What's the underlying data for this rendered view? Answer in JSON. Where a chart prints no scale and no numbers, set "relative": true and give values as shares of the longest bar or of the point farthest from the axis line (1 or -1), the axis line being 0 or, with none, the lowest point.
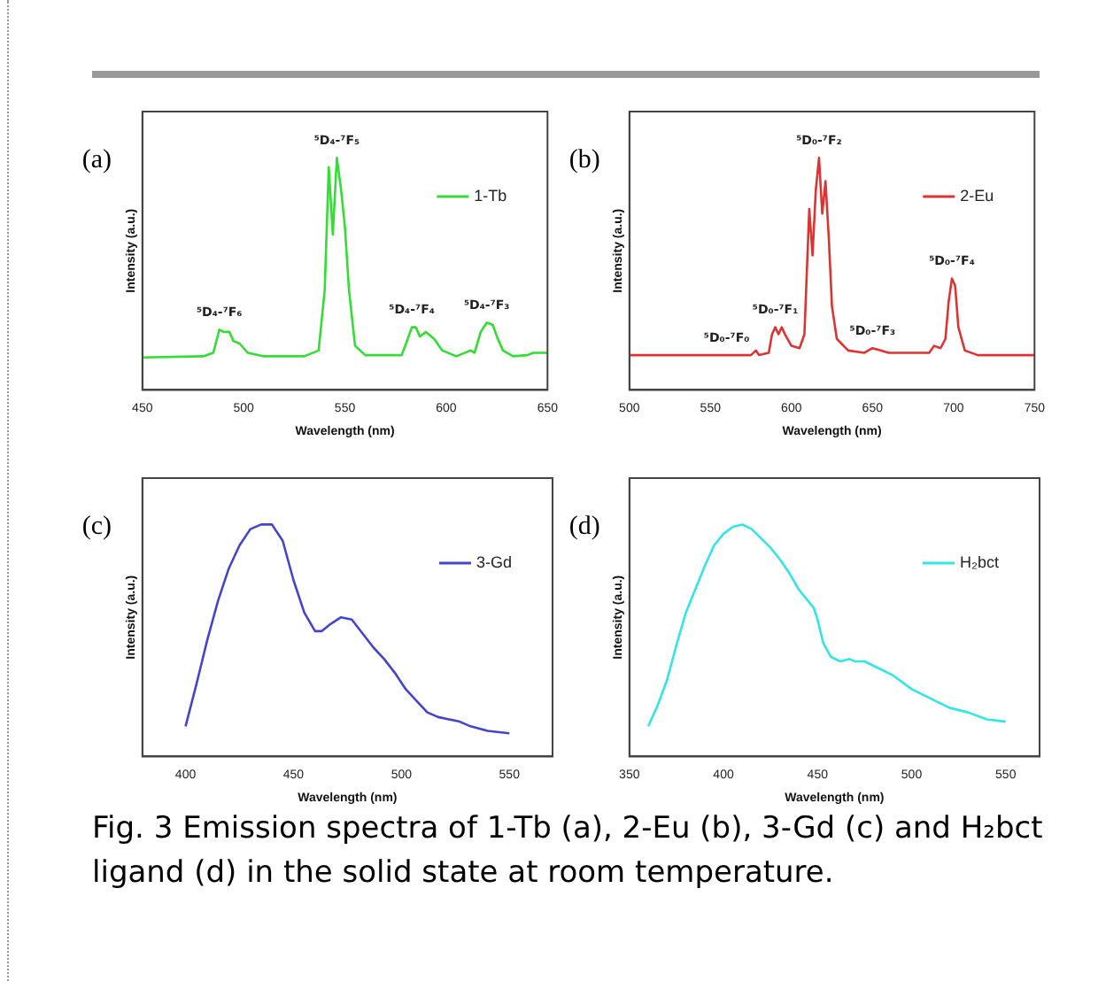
{
  "chart_data": [
    {
      "type": "line",
      "title": "(a)",
      "xlabel": "Wavelength (nm)",
      "ylabel": "Intensity (a.u.)",
      "relative": true,
      "xlim": [
        450,
        650
      ],
      "xticks": [
        450,
        500,
        550,
        600,
        650
      ],
      "legend": "top right",
      "grid": false,
      "marker": "none",
      "line_style": "solid",
      "annotations": [
        {
          "text": "⁵D₄-⁷F₆",
          "x": 488,
          "y": 0.26
        },
        {
          "text": "⁵D₄-⁷F₅",
          "x": 546,
          "y": 1.0
        },
        {
          "text": "⁵D₄-⁷F₄",
          "x": 583,
          "y": 0.27
        },
        {
          "text": "⁵D₄-⁷F₃",
          "x": 620,
          "y": 0.29
        }
      ],
      "series": [
        {
          "name": "1-Tb",
          "color": "#33dd33",
          "x": [
            450,
            480,
            485,
            488,
            490,
            493,
            495,
            498,
            502,
            510,
            530,
            537,
            540,
            542,
            544,
            546,
            548,
            550,
            552,
            555,
            560,
            578,
            581,
            583,
            585,
            587,
            590,
            594,
            598,
            605,
            612,
            614,
            617,
            620,
            623,
            625,
            628,
            633,
            640,
            643,
            650
          ],
          "values": [
            0.14,
            0.145,
            0.16,
            0.26,
            0.25,
            0.25,
            0.21,
            0.2,
            0.16,
            0.145,
            0.145,
            0.17,
            0.43,
            0.96,
            0.67,
            1.0,
            0.87,
            0.7,
            0.43,
            0.19,
            0.15,
            0.15,
            0.22,
            0.27,
            0.27,
            0.23,
            0.25,
            0.22,
            0.17,
            0.145,
            0.17,
            0.16,
            0.25,
            0.29,
            0.28,
            0.23,
            0.17,
            0.145,
            0.15,
            0.16,
            0.16
          ]
        }
      ]
    },
    {
      "type": "line",
      "title": "(b)",
      "xlabel": "Wavelength (nm)",
      "ylabel": "Intensity (a.u.)",
      "relative": true,
      "xlim": [
        500,
        750
      ],
      "xticks": [
        500,
        550,
        600,
        650,
        700,
        750
      ],
      "legend": "top right",
      "grid": false,
      "marker": "none",
      "line_style": "solid",
      "annotations": [
        {
          "text": "⁵D₀-⁷F₀",
          "x": 560,
          "y": 0.15
        },
        {
          "text": "⁵D₀-⁷F₁",
          "x": 590,
          "y": 0.27
        },
        {
          "text": "⁵D₀-⁷F₂",
          "x": 617,
          "y": 1.0
        },
        {
          "text": "⁵D₀-⁷F₃",
          "x": 650,
          "y": 0.18
        },
        {
          "text": "⁵D₀-⁷F₄",
          "x": 699,
          "y": 0.48
        }
      ],
      "series": [
        {
          "name": "2-Eu",
          "color": "#dd3333",
          "x": [
            500,
            575,
            578,
            580,
            586,
            588,
            590,
            592,
            594,
            596,
            600,
            605,
            608,
            611,
            613,
            615,
            617,
            619,
            621,
            623,
            625,
            628,
            635,
            645,
            650,
            655,
            660,
            685,
            688,
            692,
            695,
            697,
            699,
            701,
            703,
            705,
            707,
            715,
            750
          ],
          "values": [
            0.15,
            0.15,
            0.17,
            0.15,
            0.16,
            0.24,
            0.27,
            0.24,
            0.27,
            0.24,
            0.19,
            0.18,
            0.24,
            0.78,
            0.58,
            0.86,
            1.0,
            0.76,
            0.9,
            0.66,
            0.36,
            0.22,
            0.17,
            0.16,
            0.18,
            0.17,
            0.16,
            0.16,
            0.19,
            0.18,
            0.22,
            0.38,
            0.48,
            0.45,
            0.27,
            0.22,
            0.17,
            0.15,
            0.15
          ]
        }
      ]
    },
    {
      "type": "line",
      "title": "(c)",
      "xlabel": "Wavelength (nm)",
      "ylabel": "Intensity (a.u.)",
      "relative": true,
      "xlim": [
        380,
        570
      ],
      "xticks": [
        400,
        450,
        500,
        550
      ],
      "legend": "top right",
      "grid": false,
      "marker": "none",
      "line_style": "solid",
      "series": [
        {
          "name": "3-Gd",
          "color": "#4444cc",
          "x": [
            400,
            405,
            410,
            415,
            420,
            425,
            430,
            435,
            440,
            445,
            450,
            455,
            460,
            463,
            467,
            472,
            477,
            482,
            487,
            492,
            497,
            502,
            507,
            512,
            517,
            522,
            527,
            532,
            540,
            550
          ],
          "values": [
            0.13,
            0.31,
            0.5,
            0.67,
            0.81,
            0.91,
            0.98,
            1.0,
            1.0,
            0.93,
            0.76,
            0.62,
            0.54,
            0.54,
            0.57,
            0.6,
            0.59,
            0.53,
            0.47,
            0.42,
            0.36,
            0.29,
            0.24,
            0.19,
            0.17,
            0.16,
            0.15,
            0.13,
            0.11,
            0.1
          ]
        }
      ]
    },
    {
      "type": "line",
      "title": "(d)",
      "xlabel": "Wavelength (nm)",
      "ylabel": "Intensity (a.u.)",
      "relative": true,
      "xlim": [
        350,
        568
      ],
      "xticks": [
        350,
        400,
        450,
        500,
        550
      ],
      "legend": "top right",
      "grid": false,
      "marker": "none",
      "line_style": "solid",
      "annotations": [
        "Fig. 3 Emission spectra of 1-Tb (a), 2-Eu (b), 3-Gd (c) and H₂bct ligand (d) in the solid state at room temperature."
      ],
      "series": [
        {
          "name": "H₂bct",
          "color": "#33e5e5",
          "x": [
            360,
            365,
            370,
            375,
            380,
            385,
            390,
            395,
            400,
            405,
            410,
            415,
            420,
            425,
            430,
            435,
            440,
            445,
            448,
            450,
            453,
            457,
            462,
            467,
            470,
            475,
            480,
            490,
            500,
            510,
            520,
            530,
            540,
            550
          ],
          "values": [
            0.13,
            0.22,
            0.33,
            0.48,
            0.62,
            0.72,
            0.82,
            0.91,
            0.96,
            0.99,
            1.0,
            0.98,
            0.94,
            0.9,
            0.85,
            0.79,
            0.72,
            0.67,
            0.64,
            0.59,
            0.49,
            0.43,
            0.41,
            0.42,
            0.41,
            0.41,
            0.39,
            0.35,
            0.29,
            0.25,
            0.21,
            0.19,
            0.16,
            0.15
          ]
        }
      ]
    }
  ]
}
